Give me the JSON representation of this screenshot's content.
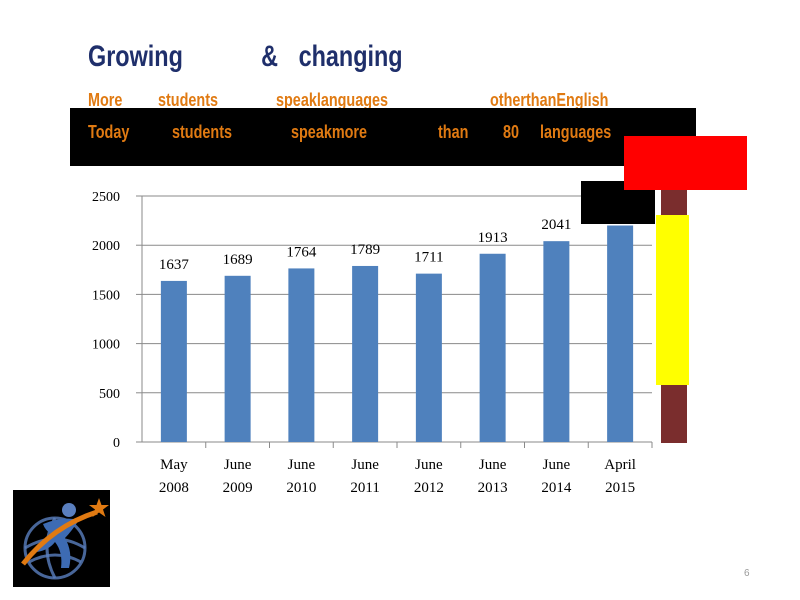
{
  "slide": {
    "title_words": [
      "Growing",
      "&",
      "changing"
    ],
    "subtitle_words": [
      "More",
      "students",
      "speaklanguages",
      "otherthanEnglish"
    ],
    "band_words": [
      "Today",
      "students",
      "speakmore",
      "than",
      "80",
      "languages"
    ],
    "page_number": "6"
  },
  "colors": {
    "title": "#1f2f6b",
    "accent_orange": "#e07a12",
    "bar": "#4f81bd",
    "black_band": "#000000",
    "red_block": "#ff0000",
    "yellow_bar": "#ffff00",
    "brown_bar": "#7a2d2d"
  },
  "logo": {
    "icon": "globe-figure-star-logo"
  },
  "chart_data": {
    "type": "bar",
    "categories": [
      [
        "May",
        "2008"
      ],
      [
        "June",
        "2009"
      ],
      [
        "June",
        "2010"
      ],
      [
        "June",
        "2011"
      ],
      [
        "June",
        "2012"
      ],
      [
        "June",
        "2013"
      ],
      [
        "June",
        "2014"
      ],
      [
        "April",
        "2015"
      ]
    ],
    "values": [
      1637,
      1689,
      1764,
      1789,
      1711,
      1913,
      2041,
      2200
    ],
    "data_labels": [
      "1637",
      "1689",
      "1764",
      "1789",
      "1711",
      "1913",
      "2041",
      ""
    ],
    "ylim": [
      0,
      2500
    ],
    "yticks": [
      0,
      500,
      1000,
      1500,
      2000,
      2500
    ],
    "grid": true,
    "legend": "none"
  }
}
